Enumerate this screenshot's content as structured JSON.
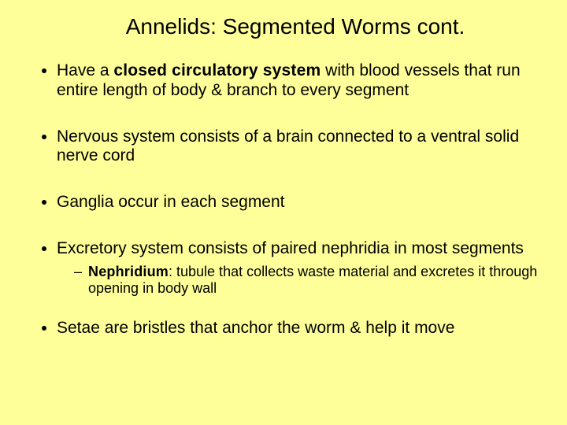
{
  "slide": {
    "background_color": "#ffff99",
    "text_color": "#000000",
    "title_fontsize": 28,
    "body_fontsize": 21,
    "sub_fontsize": 18,
    "font_family": "Arial",
    "title": "Annelids: Segmented Worms cont.",
    "bullets": {
      "b1_pre": "Have a ",
      "b1_bold": "closed circulatory system",
      "b1_post": " with blood vessels that run entire length of body & branch to every segment",
      "b2": "Nervous system consists of a brain connected to a ventral solid nerve cord",
      "b3": "Ganglia occur in each segment",
      "b4": "Excretory system consists of paired nephridia in most segments",
      "b4_sub_bold": "Nephridium",
      "b4_sub_post": ": tubule that collects waste material and excretes it through opening in body wall",
      "b5": "Setae are bristles that anchor the worm & help it move"
    }
  }
}
